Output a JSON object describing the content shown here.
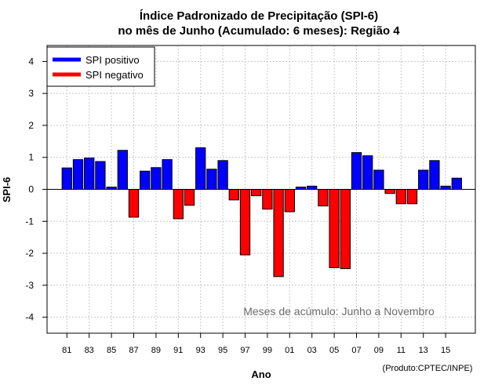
{
  "chart_data": {
    "type": "bar",
    "title": "Índice Padronizado de Precipitação (SPI-6)",
    "subtitle": "no mês de Junho (Acumulado: 6 meses): Região 4",
    "xlabel": "Ano",
    "ylabel": "SPI-6",
    "ylim": [
      -4.5,
      4.5
    ],
    "yticks": [
      -4,
      -3,
      -2,
      -1,
      0,
      1,
      2,
      3,
      4
    ],
    "x_tick_labels": [
      "81",
      "83",
      "85",
      "87",
      "89",
      "91",
      "93",
      "95",
      "97",
      "99",
      "01",
      "03",
      "05",
      "07",
      "09",
      "11",
      "13",
      "15"
    ],
    "grid": true,
    "legend_position": "top-left",
    "legend": [
      {
        "label": "SPI positivo",
        "color": "#0000ff"
      },
      {
        "label": "SPI negativo",
        "color": "#ff0000"
      }
    ],
    "positive_color": "#0000ff",
    "negative_color": "#ff0000",
    "categories": [
      "1981",
      "1982",
      "1983",
      "1984",
      "1985",
      "1986",
      "1987",
      "1988",
      "1989",
      "1990",
      "1991",
      "1992",
      "1993",
      "1994",
      "1995",
      "1996",
      "1997",
      "1998",
      "1999",
      "2000",
      "2001",
      "2002",
      "2003",
      "2004",
      "2005",
      "2006",
      "2007",
      "2008",
      "2009",
      "2010",
      "2011",
      "2012",
      "2013",
      "2014",
      "2015",
      "2016"
    ],
    "values": [
      0.67,
      0.93,
      0.98,
      0.87,
      0.07,
      1.22,
      -0.87,
      0.57,
      0.68,
      0.93,
      -0.92,
      -0.5,
      1.3,
      0.63,
      0.9,
      -0.33,
      -2.05,
      -0.2,
      -0.62,
      -2.73,
      -0.7,
      0.07,
      0.1,
      -0.52,
      -2.45,
      -2.48,
      1.15,
      1.05,
      0.6,
      -0.13,
      -0.45,
      -0.45,
      0.6,
      0.9,
      0.1,
      0.35
    ],
    "annotation": "Meses de acúmulo: Junho a Novembro",
    "credit": "(Produto:CPTEC/INPE)"
  }
}
